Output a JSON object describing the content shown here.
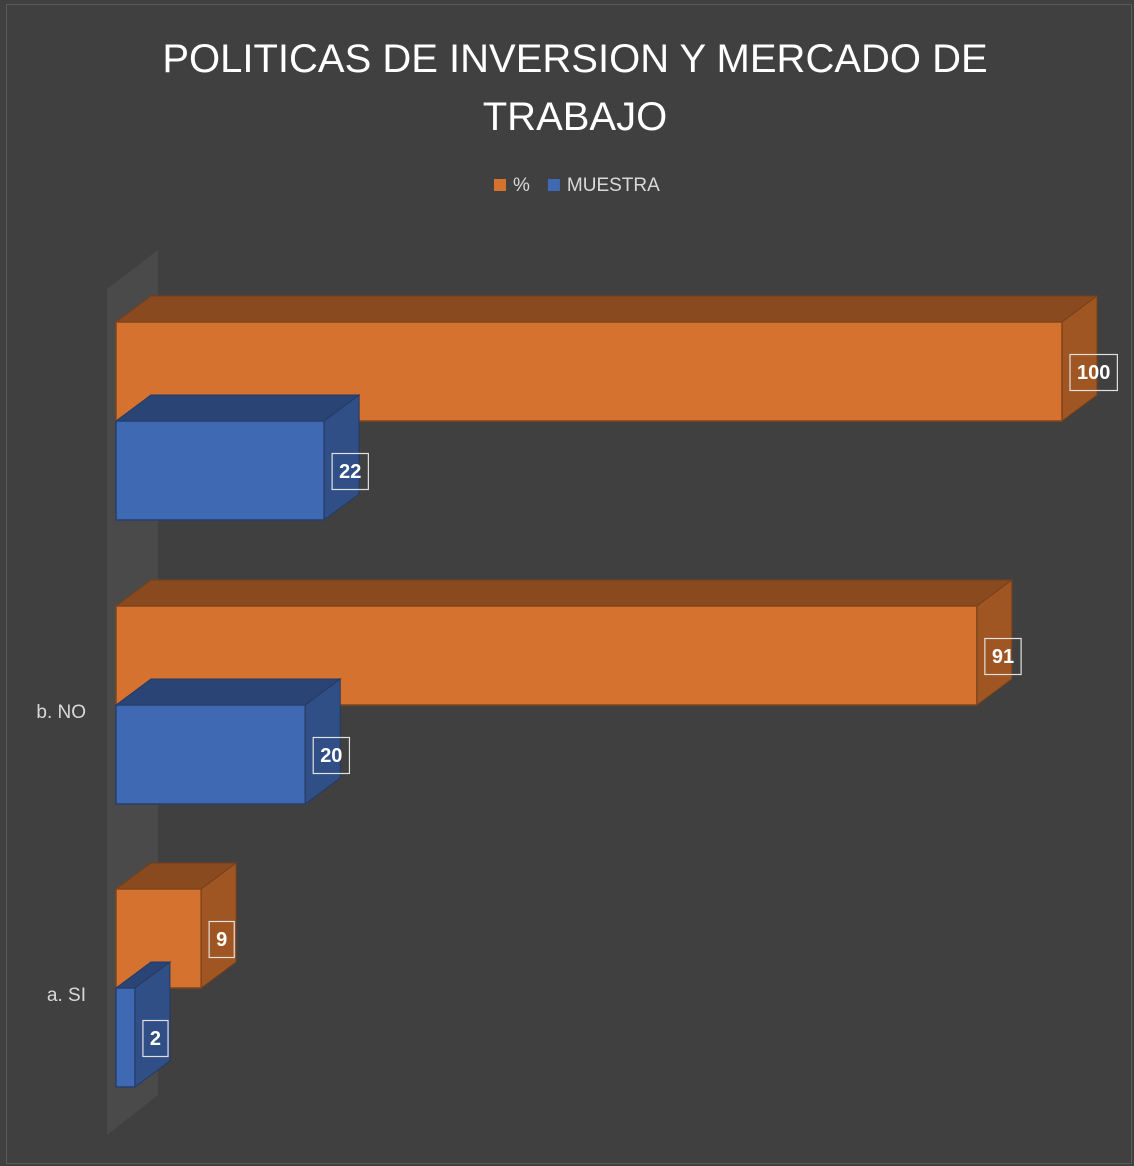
{
  "chart_data": {
    "type": "bar3d",
    "orientation": "horizontal",
    "title": "POLITICAS DE INVERSION Y MERCADO DE TRABAJO",
    "categories": [
      "a. SI",
      "b. NO",
      null
    ],
    "series": [
      {
        "name": "%",
        "color": "#d5722f",
        "values": [
          9,
          91,
          100
        ]
      },
      {
        "name": "MUESTRA",
        "color": "#4069b4",
        "values": [
          2,
          20,
          22
        ]
      }
    ],
    "xlim": [
      0,
      100
    ],
    "legend": "top"
  }
}
